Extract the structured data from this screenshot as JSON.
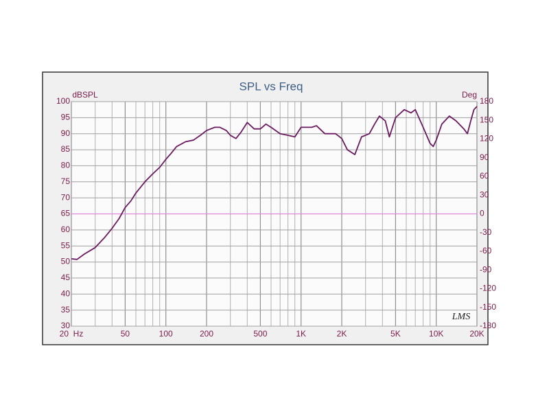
{
  "chart_data": {
    "type": "line",
    "title": "SPL vs Freq",
    "y_label": "dBSPL",
    "y2_label": "Deg",
    "watermark": "LMS",
    "log_x": true,
    "grid": true,
    "x": [
      20,
      22,
      25,
      30,
      35,
      40,
      45,
      50,
      55,
      60,
      70,
      80,
      90,
      100,
      110,
      120,
      140,
      160,
      180,
      200,
      230,
      250,
      280,
      300,
      330,
      360,
      400,
      450,
      500,
      550,
      600,
      700,
      800,
      900,
      1000,
      1200,
      1300,
      1500,
      1800,
      2000,
      2200,
      2500,
      2800,
      3200,
      3500,
      3800,
      4200,
      4500,
      5000,
      5800,
      6500,
      7000,
      8000,
      9000,
      9500,
      10000,
      11000,
      12500,
      14000,
      16000,
      17000,
      18000,
      19000,
      20000
    ],
    "series": [
      {
        "color": "#6b1a5f",
        "values": [
          51,
          50.8,
          52.5,
          54.5,
          57.5,
          60.5,
          63.5,
          67,
          69,
          71.5,
          75,
          77.5,
          79.5,
          82,
          84,
          86,
          87.5,
          88,
          89.5,
          91,
          92,
          92,
          91,
          89.5,
          88.5,
          90.5,
          93.5,
          91.5,
          91.5,
          93,
          92,
          90,
          89.5,
          89,
          92,
          92,
          92.5,
          90,
          90,
          88.5,
          85,
          83.5,
          89,
          90,
          93,
          95.5,
          94,
          89,
          95,
          97.5,
          96.5,
          97.5,
          92,
          87,
          86,
          88,
          93,
          95.5,
          94,
          91.5,
          90,
          94,
          97.5,
          98.5
        ]
      }
    ],
    "reference_line": {
      "axis": "y2",
      "value": 0,
      "color": "#d98ad9"
    },
    "xlim": [
      20,
      20000
    ],
    "xticks": [
      {
        "value": 20,
        "label": "20  Hz"
      },
      50,
      100,
      200,
      500,
      {
        "value": 1000,
        "label": "1K"
      },
      {
        "value": 2000,
        "label": "2K"
      },
      {
        "value": 5000,
        "label": "5K"
      },
      {
        "value": 10000,
        "label": "10K"
      },
      {
        "value": 20000,
        "label": "20K"
      }
    ],
    "xgrid_minor": [
      30,
      40,
      60,
      70,
      80,
      90,
      300,
      400,
      600,
      700,
      800,
      900,
      3000,
      4000,
      6000,
      7000,
      8000,
      9000
    ],
    "ylim": [
      30,
      100
    ],
    "yticks": [
      30,
      35,
      40,
      45,
      50,
      55,
      60,
      65,
      70,
      75,
      80,
      85,
      90,
      95,
      100
    ],
    "y2lim": [
      -180,
      180
    ],
    "y2ticks": [
      -180,
      -150,
      -120,
      -90,
      -60,
      -30,
      0,
      30,
      60,
      90,
      120,
      150,
      180
    ]
  }
}
